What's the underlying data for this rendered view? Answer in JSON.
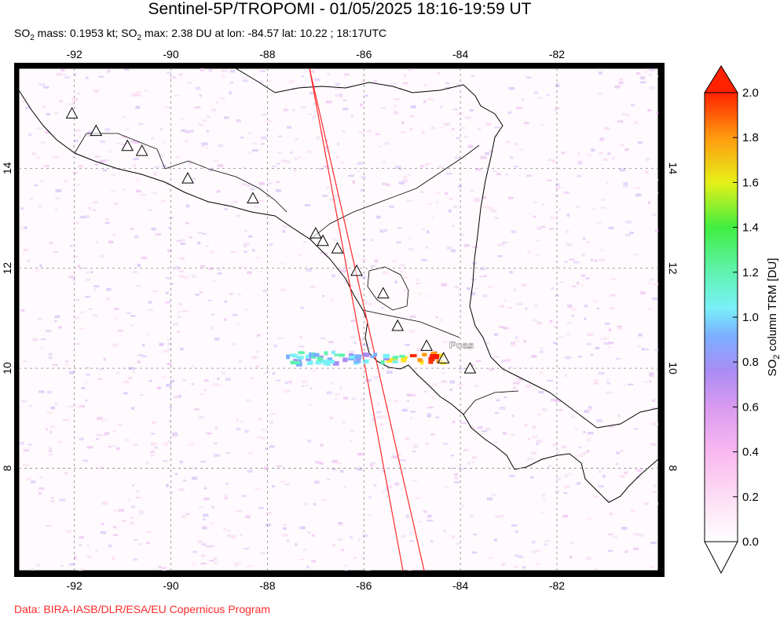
{
  "title": "Sentinel-5P/TROPOMI - 01/05/2025 18:16-19:59 UT",
  "subtitle": {
    "so2_label_1": "SO",
    "sub_1": "2",
    "mass_text": " mass: 0.1953 kt; ",
    "so2_label_2": "SO",
    "sub_2": "2",
    "max_text": " max: 2.38 DU at lon: -84.57 lat: 10.22 ; 18:17UTC"
  },
  "credit": "Data: BIRA-IASB/DLR/ESA/EU Copernicus Program",
  "map": {
    "lon_ticks": [
      "-92",
      "-90",
      "-88",
      "-86",
      "-84",
      "-82"
    ],
    "lat_ticks": [
      "14",
      "12",
      "10",
      "8"
    ],
    "lon_values": [
      -92,
      -90,
      -88,
      -86,
      -84,
      -82
    ],
    "lat_values": [
      14,
      12,
      10,
      8
    ],
    "lon_range": [
      -93.15,
      -79.9
    ],
    "lat_range": [
      5.95,
      16.0
    ],
    "volcano_label": "Poas",
    "volcanoes": [
      {
        "lon": -92.05,
        "lat": 15.1
      },
      {
        "lon": -91.55,
        "lat": 14.75
      },
      {
        "lon": -90.9,
        "lat": 14.45
      },
      {
        "lon": -90.6,
        "lat": 14.35
      },
      {
        "lon": -89.65,
        "lat": 13.8
      },
      {
        "lon": -88.3,
        "lat": 13.4
      },
      {
        "lon": -87.0,
        "lat": 12.7
      },
      {
        "lon": -86.85,
        "lat": 12.55
      },
      {
        "lon": -86.55,
        "lat": 12.4
      },
      {
        "lon": -86.15,
        "lat": 11.95
      },
      {
        "lon": -85.6,
        "lat": 11.5
      },
      {
        "lon": -85.3,
        "lat": 10.85
      },
      {
        "lon": -84.7,
        "lat": 10.45
      },
      {
        "lon": -84.35,
        "lat": 10.2
      },
      {
        "lon": -83.8,
        "lat": 10.0
      }
    ],
    "plume_max": {
      "lon": -84.57,
      "lat": 10.22
    }
  },
  "colorbar": {
    "label_prefix": "SO",
    "label_sub": "2",
    "label_suffix": " column TRM [DU]",
    "ticks": [
      "2.0",
      "1.8",
      "1.6",
      "1.4",
      "1.2",
      "1.0",
      "0.8",
      "0.6",
      "0.4",
      "0.2",
      "0.0"
    ],
    "min": 0.0,
    "max": 2.0,
    "colors": {
      "top_triangle": "#ff2200",
      "bottom_triangle": "#ffffff"
    }
  }
}
